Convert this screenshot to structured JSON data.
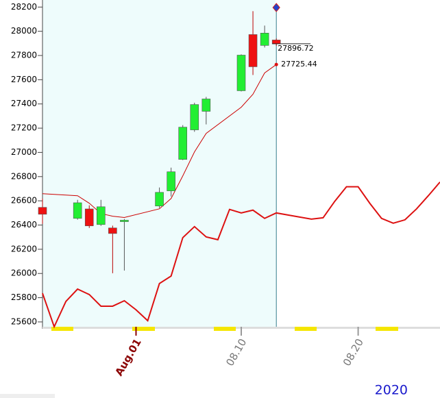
{
  "chart_data": {
    "type": "candlestick",
    "ylim": [
      25560,
      28230
    ],
    "yticks": [
      25600,
      25800,
      26000,
      26200,
      26400,
      26600,
      26800,
      27000,
      27200,
      27400,
      27600,
      27800,
      28000,
      28200
    ],
    "xlim": [
      -7,
      27
    ],
    "xticks": [
      {
        "value": 1,
        "label": "Aug.01"
      },
      {
        "value": 10,
        "label": "08.10"
      },
      {
        "value": 20,
        "label": "08.20"
      }
    ],
    "year_label": "2020",
    "cursor_x": 13,
    "candles": {
      "up_color": "#22ee33",
      "down_color": "#ee1111",
      "x": [
        -7,
        -4,
        -3,
        -2,
        -1,
        0,
        3,
        4,
        5,
        6,
        7,
        10,
        11,
        12,
        13
      ],
      "open": [
        26546,
        26455,
        26533,
        26404,
        26376,
        26428,
        26557,
        26682,
        26942,
        27186,
        27339,
        27509,
        27973,
        27883,
        27928
      ],
      "high": [
        26619,
        26608,
        26563,
        26608,
        26395,
        26450,
        26710,
        26874,
        27225,
        27410,
        27458,
        27809,
        28166,
        28047,
        27940
      ],
      "low": [
        26410,
        26444,
        26376,
        26393,
        26002,
        26024,
        26540,
        26636,
        26936,
        27170,
        27231,
        27503,
        27639,
        27866,
        27880
      ],
      "close": [
        26489,
        26584,
        26393,
        26551,
        26330,
        26440,
        26670,
        26840,
        27208,
        27395,
        27441,
        27803,
        27707,
        27985,
        27896.72
      ]
    },
    "lines": [
      {
        "color": "#cc0000",
        "width": 1,
        "x": [
          -7,
          -4,
          -3,
          -2,
          -1,
          0,
          3,
          4,
          5,
          6,
          7,
          10,
          11,
          12,
          13
        ],
        "values": [
          26659,
          26642,
          26580,
          26495,
          26473,
          26462,
          26534,
          26619,
          26806,
          27004,
          27157,
          27373,
          27480,
          27656,
          27725.44
        ]
      },
      {
        "color": "#dd1111",
        "width": 2,
        "x": [
          -7,
          -6,
          -5,
          -4,
          -3,
          -2,
          -1,
          0,
          1,
          2,
          3,
          4,
          5,
          6,
          7,
          8,
          9,
          10,
          11,
          12,
          13,
          14,
          15,
          16,
          17,
          18,
          19,
          20,
          21,
          22,
          23,
          24,
          25,
          26,
          27
        ],
        "values": [
          25837,
          25560,
          25769,
          25871,
          25826,
          25730,
          25730,
          25775,
          25700,
          25610,
          25917,
          25979,
          26296,
          26387,
          26302,
          26279,
          26529,
          26500,
          26523,
          26455,
          26500,
          26483,
          26466,
          26449,
          26460,
          26596,
          26716,
          26716,
          26579,
          26455,
          26415,
          26443,
          26534,
          26642,
          26755
        ]
      }
    ]
  }
}
